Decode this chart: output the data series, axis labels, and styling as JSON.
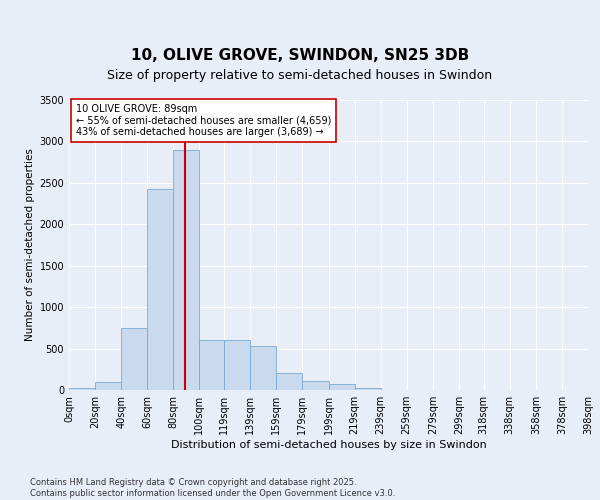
{
  "title_line1": "10, OLIVE GROVE, SWINDON, SN25 3DB",
  "title_line2": "Size of property relative to semi-detached houses in Swindon",
  "xlabel": "Distribution of semi-detached houses by size in Swindon",
  "ylabel": "Number of semi-detached properties",
  "bin_edges": [
    0,
    20,
    40,
    60,
    80,
    100,
    119,
    139,
    159,
    179,
    199,
    219,
    239,
    259,
    279,
    299,
    318,
    338,
    358,
    378,
    398
  ],
  "bar_heights": [
    30,
    100,
    750,
    2420,
    2900,
    600,
    600,
    530,
    200,
    110,
    70,
    30,
    0,
    0,
    0,
    0,
    0,
    0,
    0,
    0
  ],
  "bar_color": "#c9daee",
  "bar_edgecolor": "#7aaad4",
  "property_line_x": 89,
  "property_line_color": "#cc0000",
  "annotation_text": "10 OLIVE GROVE: 89sqm\n← 55% of semi-detached houses are smaller (4,659)\n43% of semi-detached houses are larger (3,689) →",
  "annotation_box_facecolor": "white",
  "annotation_box_edgecolor": "#cc0000",
  "ylim": [
    0,
    3500
  ],
  "yticks": [
    0,
    500,
    1000,
    1500,
    2000,
    2500,
    3000,
    3500
  ],
  "tick_labels": [
    "0sqm",
    "20sqm",
    "40sqm",
    "60sqm",
    "80sqm",
    "100sqm",
    "119sqm",
    "139sqm",
    "159sqm",
    "179sqm",
    "199sqm",
    "219sqm",
    "239sqm",
    "259sqm",
    "279sqm",
    "299sqm",
    "318sqm",
    "338sqm",
    "358sqm",
    "378sqm",
    "398sqm"
  ],
  "background_color": "#e8eef8",
  "plot_background": "#e8eef8",
  "footer_text": "Contains HM Land Registry data © Crown copyright and database right 2025.\nContains public sector information licensed under the Open Government Licence v3.0.",
  "title_fontsize": 11,
  "subtitle_fontsize": 9,
  "xlabel_fontsize": 8,
  "ylabel_fontsize": 7.5,
  "tick_fontsize": 7,
  "annotation_fontsize": 7,
  "footer_fontsize": 6
}
